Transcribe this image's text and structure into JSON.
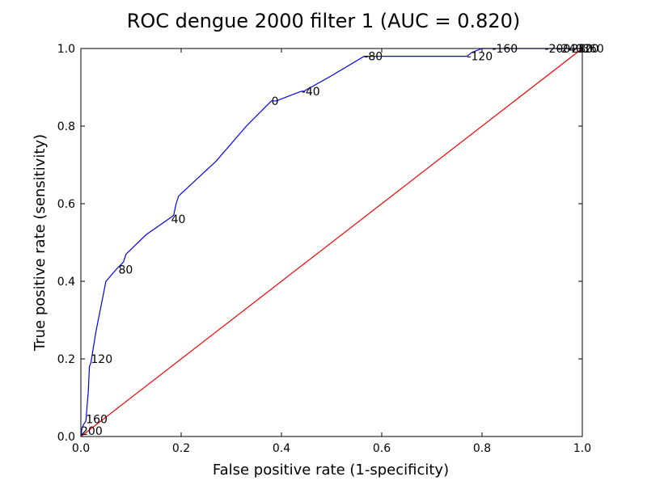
{
  "chart_data": {
    "type": "line",
    "title": "ROC dengue 2000 filter 1 (AUC = 0.820)",
    "xlabel": "False positive rate (1-specificity)",
    "ylabel": "True positive rate (sensitivity)",
    "xlim": [
      0,
      1
    ],
    "ylim": [
      0,
      1
    ],
    "x_ticks": [
      "0.0",
      "0.2",
      "0.4",
      "0.6",
      "0.8",
      "1.0"
    ],
    "y_ticks": [
      "0.0",
      "0.2",
      "0.4",
      "0.6",
      "0.8",
      "1.0"
    ],
    "grid": false,
    "legend": "none",
    "colors": {
      "roc": "#0000ff",
      "diagonal": "#ff0000"
    },
    "series": [
      {
        "role": "roc",
        "x": [
          0.0,
          0.002,
          0.005,
          0.01,
          0.015,
          0.017,
          0.02,
          0.03,
          0.05,
          0.07,
          0.085,
          0.09,
          0.13,
          0.18,
          0.185,
          0.19,
          0.195,
          0.27,
          0.33,
          0.38,
          0.385,
          0.39,
          0.42,
          0.44,
          0.445,
          0.5,
          0.565,
          0.57,
          0.65,
          0.72,
          0.77,
          0.775,
          0.78,
          0.8,
          0.83,
          0.96,
          1.0,
          1.0
        ],
        "y": [
          0.0,
          0.02,
          0.03,
          0.04,
          0.12,
          0.18,
          0.19,
          0.27,
          0.4,
          0.43,
          0.45,
          0.47,
          0.52,
          0.565,
          0.57,
          0.6,
          0.62,
          0.71,
          0.8,
          0.865,
          0.865,
          0.865,
          0.88,
          0.89,
          0.89,
          0.93,
          0.98,
          0.98,
          0.98,
          0.98,
          0.98,
          0.985,
          0.99,
          1.0,
          1.0,
          1.0,
          1.0,
          1.0
        ]
      },
      {
        "role": "diagonal",
        "x": [
          0,
          1
        ],
        "y": [
          0,
          1
        ]
      }
    ],
    "point_labels": [
      {
        "text": "200",
        "x": 0.0,
        "y": 0.015
      },
      {
        "text": "160",
        "x": 0.01,
        "y": 0.045
      },
      {
        "text": "120",
        "x": 0.02,
        "y": 0.2
      },
      {
        "text": "80",
        "x": 0.075,
        "y": 0.43
      },
      {
        "text": "40",
        "x": 0.18,
        "y": 0.56
      },
      {
        "text": "0",
        "x": 0.38,
        "y": 0.865
      },
      {
        "text": "-40",
        "x": 0.44,
        "y": 0.89
      },
      {
        "text": "-80",
        "x": 0.565,
        "y": 0.98
      },
      {
        "text": "-120",
        "x": 0.77,
        "y": 0.98
      },
      {
        "text": "-160",
        "x": 0.82,
        "y": 1.0
      },
      {
        "text": "-200",
        "x": 0.925,
        "y": 1.0
      },
      {
        "text": "-240",
        "x": 0.95,
        "y": 1.0
      },
      {
        "text": "-280",
        "x": 0.97,
        "y": 1.0
      },
      {
        "text": "320",
        "x": 0.99,
        "y": 1.0
      },
      {
        "text": "360",
        "x": 1.0,
        "y": 1.0
      }
    ]
  }
}
